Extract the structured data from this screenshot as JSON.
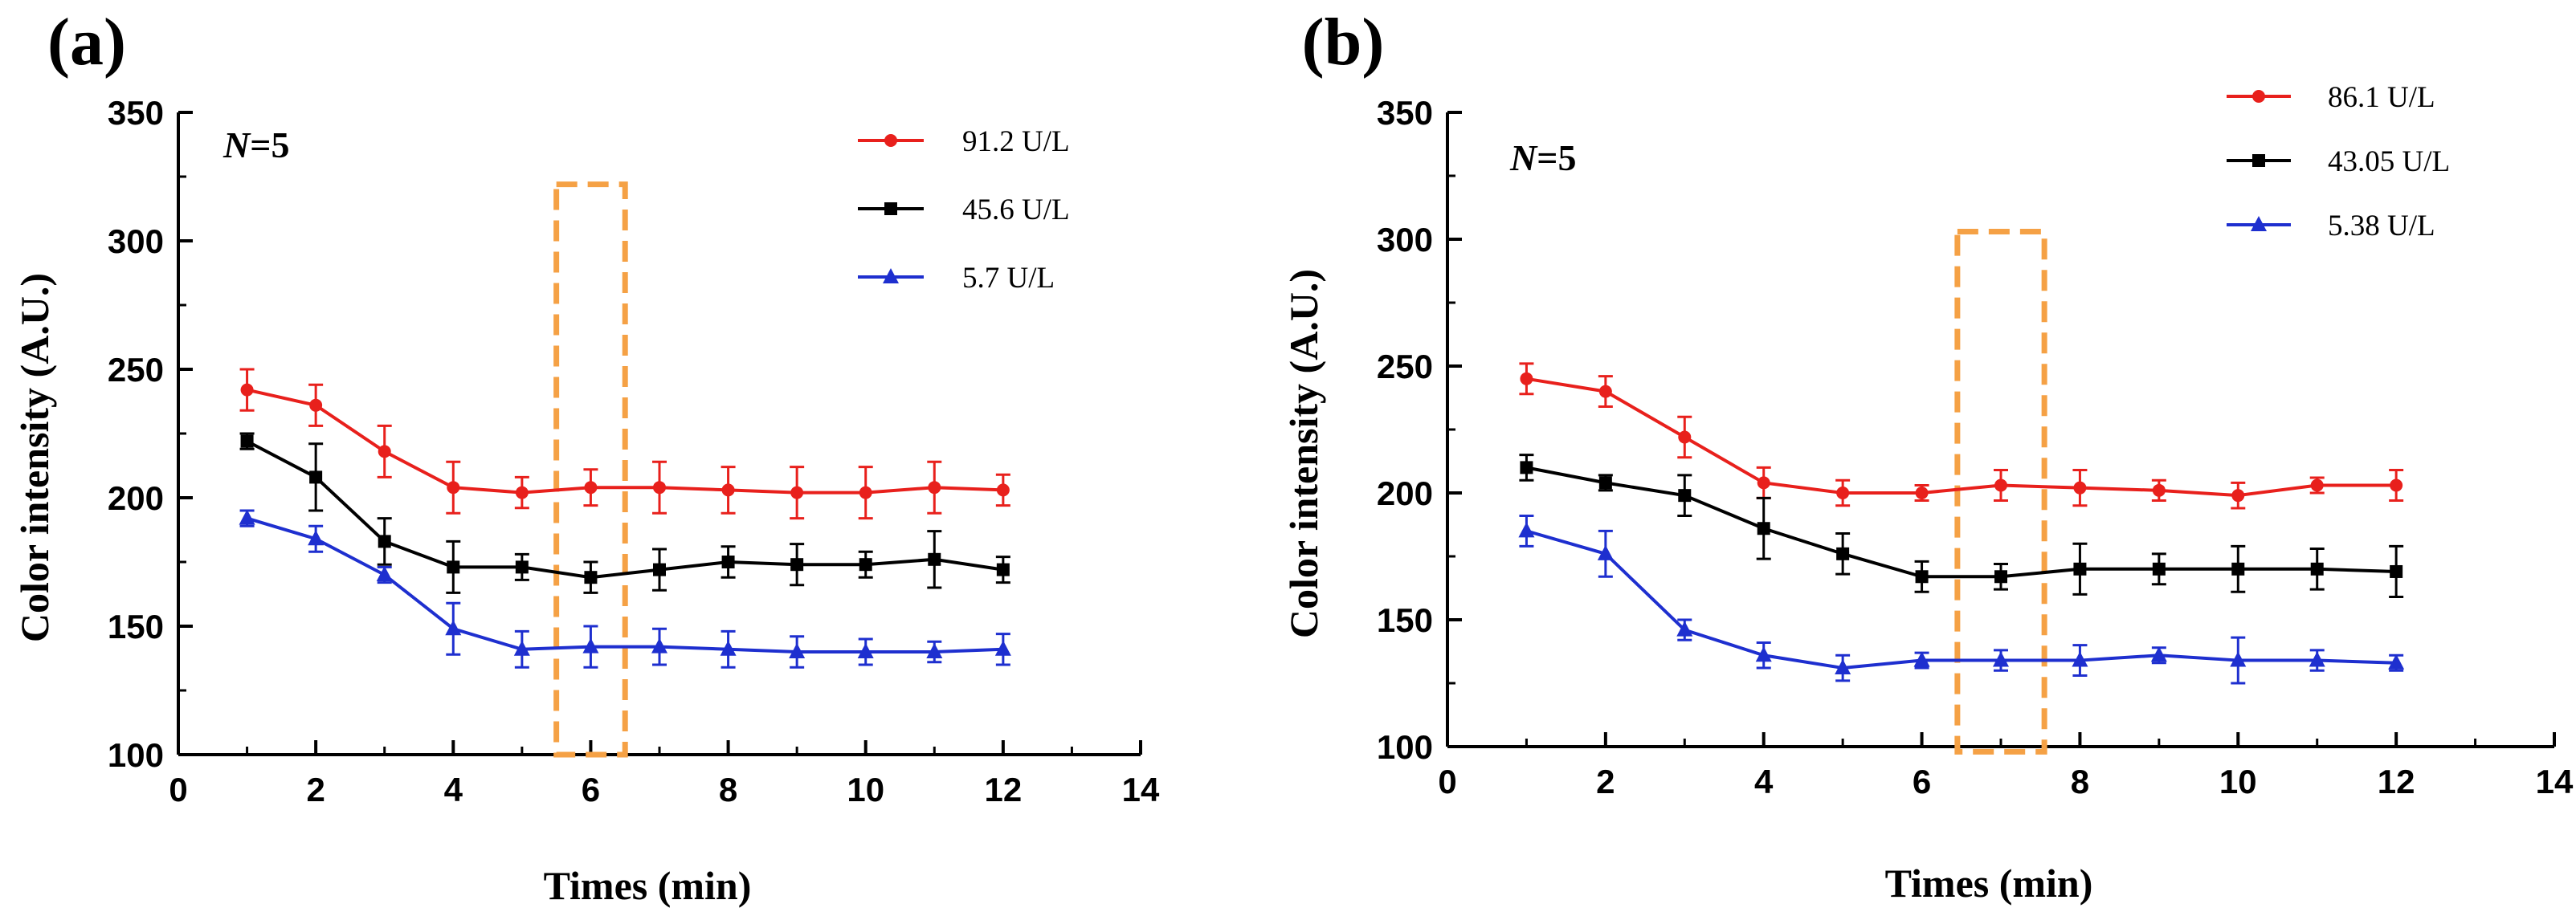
{
  "chart_data": [
    {
      "type": "line",
      "panel_label": "(a)",
      "annotation": {
        "prefix": "N",
        "suffix": "=5"
      },
      "xlabel": "Times (min)",
      "ylabel": "Color intensity (A.U.)",
      "xlim": [
        0,
        14
      ],
      "ylim": [
        100,
        350
      ],
      "xticks": [
        0,
        2,
        4,
        6,
        8,
        10,
        12,
        14
      ],
      "yticks": [
        100,
        150,
        200,
        250,
        300,
        350
      ],
      "x": [
        1,
        2,
        3,
        4,
        5,
        6,
        7,
        8,
        9,
        10,
        11,
        12
      ],
      "highlight_box": {
        "x_range": [
          5.5,
          6.5
        ],
        "y_range": [
          100,
          322
        ],
        "color": "#F5A145"
      },
      "legend_position": "top-right",
      "series": [
        {
          "name": "91.2 U/L",
          "color": "#E8201C",
          "marker": "circle",
          "values": [
            242,
            236,
            218,
            204,
            202,
            204,
            204,
            203,
            202,
            202,
            204,
            203
          ],
          "errors": [
            8,
            8,
            10,
            10,
            6,
            7,
            10,
            9,
            10,
            10,
            10,
            6
          ]
        },
        {
          "name": "45.6 U/L",
          "color": "#000000",
          "marker": "square",
          "values": [
            222,
            208,
            183,
            173,
            173,
            169,
            172,
            175,
            174,
            174,
            176,
            172
          ],
          "errors": [
            3,
            13,
            9,
            10,
            5,
            6,
            8,
            6,
            8,
            5,
            11,
            5
          ]
        },
        {
          "name": "5.7 U/L",
          "color": "#1E2FCF",
          "marker": "triangle",
          "values": [
            192,
            184,
            170,
            149,
            141,
            142,
            142,
            141,
            140,
            140,
            140,
            141
          ],
          "errors": [
            3,
            5,
            3,
            10,
            7,
            8,
            7,
            7,
            6,
            5,
            4,
            6
          ]
        }
      ]
    },
    {
      "type": "line",
      "panel_label": "(b)",
      "annotation": {
        "prefix": "N",
        "suffix": "=5"
      },
      "xlabel": "Times (min)",
      "ylabel": "Color intensity (A.U.)",
      "xlim": [
        0,
        14
      ],
      "ylim": [
        100,
        350
      ],
      "xticks": [
        0,
        2,
        4,
        6,
        8,
        10,
        12,
        14
      ],
      "yticks": [
        100,
        150,
        200,
        250,
        300,
        350
      ],
      "x": [
        1,
        2,
        3,
        4,
        5,
        6,
        7,
        8,
        9,
        10,
        11,
        12
      ],
      "highlight_box": {
        "x_range": [
          6.45,
          7.55
        ],
        "y_range": [
          98,
          303
        ],
        "color": "#F5A145"
      },
      "legend_position": "top-right",
      "series": [
        {
          "name": "86.1 U/L",
          "color": "#E8201C",
          "marker": "circle",
          "values": [
            245,
            240,
            222,
            204,
            200,
            200,
            203,
            202,
            201,
            199,
            203,
            203
          ],
          "errors": [
            6,
            6,
            8,
            6,
            5,
            3,
            6,
            7,
            4,
            5,
            3,
            6
          ]
        },
        {
          "name": "43.05 U/L",
          "color": "#000000",
          "marker": "square",
          "values": [
            210,
            204,
            199,
            186,
            176,
            167,
            167,
            170,
            170,
            170,
            170,
            169
          ],
          "errors": [
            5,
            3,
            8,
            12,
            8,
            6,
            5,
            10,
            6,
            9,
            8,
            10
          ]
        },
        {
          "name": "5.38 U/L",
          "color": "#1E2FCF",
          "marker": "triangle",
          "values": [
            185,
            176,
            146,
            136,
            131,
            134,
            134,
            134,
            136,
            134,
            134,
            133
          ],
          "errors": [
            6,
            9,
            4,
            5,
            5,
            3,
            4,
            6,
            3,
            9,
            4,
            3
          ]
        }
      ]
    }
  ]
}
